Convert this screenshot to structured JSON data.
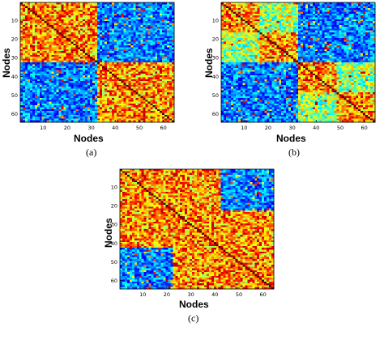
{
  "chart_data": [
    {
      "type": "heatmap",
      "caption": "(a)",
      "xlabel": "Nodes",
      "ylabel": "Nodes",
      "n": 64,
      "x_ticks": [
        10,
        20,
        30,
        40,
        50,
        60
      ],
      "y_ticks": [
        10,
        20,
        30,
        40,
        50,
        60
      ],
      "colormap": "jet",
      "blocks": [
        {
          "rows": [
            1,
            32
          ],
          "cols": [
            1,
            32
          ],
          "level": "high"
        },
        {
          "rows": [
            33,
            64
          ],
          "cols": [
            33,
            64
          ],
          "level": "high"
        },
        {
          "rows": [
            1,
            32
          ],
          "cols": [
            33,
            64
          ],
          "level": "low"
        },
        {
          "rows": [
            33,
            64
          ],
          "cols": [
            1,
            32
          ],
          "level": "low"
        }
      ],
      "diagonal": "max"
    },
    {
      "type": "heatmap",
      "caption": "(b)",
      "xlabel": "Nodes",
      "ylabel": "Nodes",
      "n": 64,
      "x_ticks": [
        10,
        20,
        30,
        40,
        50,
        60
      ],
      "y_ticks": [
        10,
        20,
        30,
        40,
        50,
        60
      ],
      "colormap": "jet",
      "blocks": [
        {
          "rows": [
            1,
            16
          ],
          "cols": [
            1,
            16
          ],
          "level": "high"
        },
        {
          "rows": [
            17,
            32
          ],
          "cols": [
            17,
            32
          ],
          "level": "high"
        },
        {
          "rows": [
            33,
            48
          ],
          "cols": [
            33,
            48
          ],
          "level": "high"
        },
        {
          "rows": [
            49,
            64
          ],
          "cols": [
            49,
            64
          ],
          "level": "high"
        },
        {
          "rows": [
            1,
            16
          ],
          "cols": [
            17,
            32
          ],
          "level": "mid"
        },
        {
          "rows": [
            17,
            32
          ],
          "cols": [
            1,
            16
          ],
          "level": "mid"
        },
        {
          "rows": [
            33,
            48
          ],
          "cols": [
            49,
            64
          ],
          "level": "mid"
        },
        {
          "rows": [
            49,
            64
          ],
          "cols": [
            33,
            48
          ],
          "level": "mid"
        }
      ],
      "background": "low",
      "diagonal": "max"
    },
    {
      "type": "heatmap",
      "caption": "(c)",
      "xlabel": "Nodes",
      "ylabel": "Nodes",
      "n": 64,
      "x_ticks": [
        10,
        20,
        30,
        40,
        50,
        60
      ],
      "y_ticks": [
        10,
        20,
        30,
        40,
        50,
        60
      ],
      "colormap": "jet",
      "blocks": [
        {
          "rows": [
            1,
            22
          ],
          "cols": [
            43,
            64
          ],
          "level": "low"
        },
        {
          "rows": [
            43,
            64
          ],
          "cols": [
            1,
            22
          ],
          "level": "low"
        }
      ],
      "background": "high",
      "diagonal": "max"
    }
  ]
}
